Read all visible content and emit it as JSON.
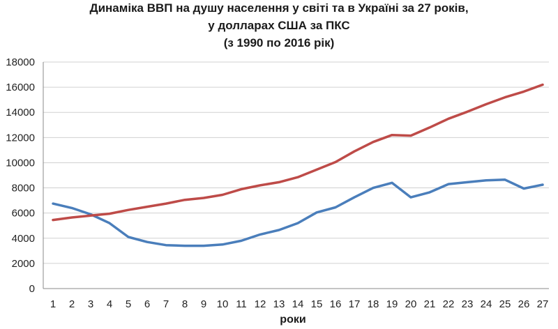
{
  "chart_data": {
    "type": "line",
    "title": "Динаміка ВВП на душу населення у світі та в Україні за 27 років,",
    "subtitle": "у долларах США за ПКС",
    "subtitle2": "(з 1990 по 2016 рік)",
    "xlabel": "роки",
    "ylabel": "",
    "ylim": [
      0,
      18000
    ],
    "yticks": [
      0,
      2000,
      4000,
      6000,
      8000,
      10000,
      12000,
      14000,
      16000,
      18000
    ],
    "x": [
      1,
      2,
      3,
      4,
      5,
      6,
      7,
      8,
      9,
      10,
      11,
      12,
      13,
      14,
      15,
      16,
      17,
      18,
      19,
      20,
      21,
      22,
      23,
      24,
      25,
      26,
      27
    ],
    "grid": true,
    "legend": "none",
    "series": [
      {
        "color": "#4a7ebb",
        "values": [
          6750,
          6400,
          5900,
          5200,
          4100,
          3700,
          3450,
          3400,
          3400,
          3500,
          3800,
          4300,
          4650,
          5200,
          6050,
          6450,
          7250,
          8000,
          8400,
          7250,
          7650,
          8300,
          8450,
          8600,
          8650,
          7950,
          8250
        ]
      },
      {
        "color": "#be4b48",
        "values": [
          5450,
          5650,
          5800,
          5950,
          6250,
          6500,
          6750,
          7050,
          7200,
          7450,
          7900,
          8200,
          8450,
          8850,
          9450,
          10050,
          10900,
          11650,
          12200,
          12150,
          12800,
          13500,
          14050,
          14650,
          15200,
          15650,
          16200
        ]
      }
    ]
  }
}
